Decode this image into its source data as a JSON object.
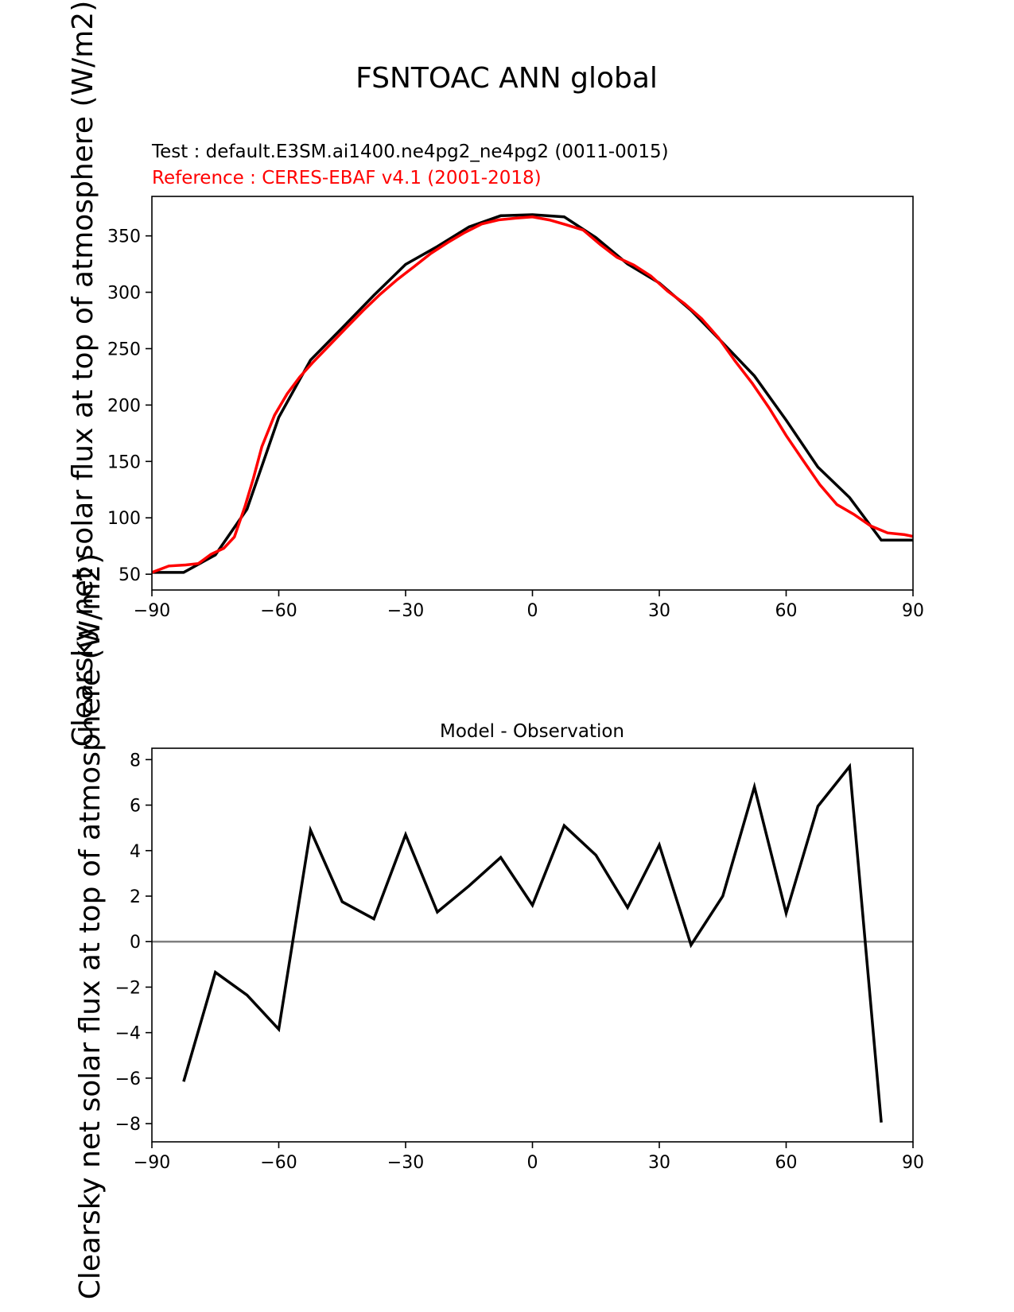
{
  "figure": {
    "title": "FSNTOAC ANN global",
    "test_label": "Test : default.E3SM.ai1400.ne4pg2_ne4pg2 (0011-0015)",
    "reference_label": "Reference : CERES-EBAF v4.1 (2001-2018)",
    "ylabel": "Clearsky net solar flux at top of atmosphere (W/m2)",
    "colors": {
      "test": "#000000",
      "reference": "#ff0000",
      "zero_line": "#808080"
    }
  },
  "chart_data": [
    {
      "type": "line",
      "title": "",
      "xlabel": "",
      "ylabel": "Clearsky net solar flux at top of atmosphere (W/m2)",
      "xlim": [
        -90,
        90
      ],
      "ylim": [
        36,
        385
      ],
      "xticks": [
        -90,
        -60,
        -30,
        0,
        30,
        60,
        90
      ],
      "yticks": [
        50,
        100,
        150,
        200,
        250,
        300,
        350
      ],
      "series": [
        {
          "key": "test",
          "x": [
            -90,
            -82.5,
            -75,
            -67.5,
            -60,
            -52.5,
            -45,
            -37.5,
            -30,
            -22.5,
            -15,
            -7.5,
            0,
            7.5,
            15,
            22.5,
            30,
            37.5,
            45,
            52.5,
            60,
            67.5,
            75,
            82.5,
            90
          ],
          "values": [
            51.6,
            51.6,
            67.1,
            107.7,
            189.1,
            239.8,
            268.4,
            297.3,
            324.7,
            340.6,
            358.0,
            367.9,
            368.8,
            366.9,
            348.5,
            325.1,
            308.2,
            284.0,
            255.1,
            225.8,
            186.6,
            145.0,
            117.9,
            80.2,
            80.2
          ]
        },
        {
          "key": "reference",
          "x": [
            -90,
            -86,
            -82,
            -79,
            -76,
            -73,
            -70.5,
            -68,
            -66,
            -64,
            -61,
            -58,
            -55,
            -52,
            -48,
            -44,
            -40,
            -36,
            -32,
            -28,
            -24,
            -20,
            -16,
            -12,
            -8,
            -4,
            0,
            4,
            8,
            12,
            16,
            20,
            24,
            28,
            32,
            36,
            40,
            44,
            48,
            52,
            56,
            60,
            64,
            68,
            72,
            76,
            80,
            84,
            88,
            90
          ],
          "values": [
            51.6,
            57.3,
            58.2,
            59.5,
            67.7,
            73.0,
            83.0,
            110.0,
            135.0,
            163.0,
            191.0,
            210.0,
            225.0,
            237.5,
            253.1,
            268.7,
            283.9,
            298.3,
            311.2,
            322.7,
            334.5,
            344.2,
            353.0,
            360.5,
            364.2,
            365.7,
            366.8,
            364.1,
            359.8,
            355.2,
            342.4,
            331.0,
            324.1,
            314.4,
            300.9,
            289.8,
            276.6,
            259.6,
            238.6,
            219.2,
            197.3,
            173.0,
            150.9,
            129.3,
            111.8,
            103.1,
            92.8,
            86.6,
            85.1,
            83.5
          ]
        }
      ]
    },
    {
      "type": "line",
      "title": "Model - Observation",
      "xlabel": "",
      "ylabel": "Clearsky net solar flux at top of atmosphere (W/m2)",
      "xlim": [
        -90,
        90
      ],
      "ylim": [
        -8.8,
        8.5
      ],
      "xticks": [
        -90,
        -60,
        -30,
        0,
        30,
        60,
        90
      ],
      "yticks": [
        -8,
        -6,
        -4,
        -2,
        0,
        2,
        4,
        6,
        8
      ],
      "zero_line": 0,
      "series": [
        {
          "key": "difference",
          "x": [
            -82.5,
            -75,
            -67.5,
            -60,
            -52.5,
            -45,
            -37.5,
            -30,
            -22.5,
            -15,
            -7.5,
            0,
            7.5,
            15,
            22.5,
            30,
            37.5,
            45,
            52.5,
            60,
            67.5,
            75,
            82.5
          ],
          "values": [
            -6.15,
            -1.35,
            -2.35,
            -3.85,
            4.9,
            1.75,
            1.0,
            4.7,
            1.3,
            2.45,
            3.7,
            1.6,
            5.1,
            3.8,
            1.5,
            4.25,
            -0.15,
            2.0,
            6.8,
            1.25,
            5.95,
            7.7,
            -7.95
          ]
        }
      ]
    }
  ]
}
